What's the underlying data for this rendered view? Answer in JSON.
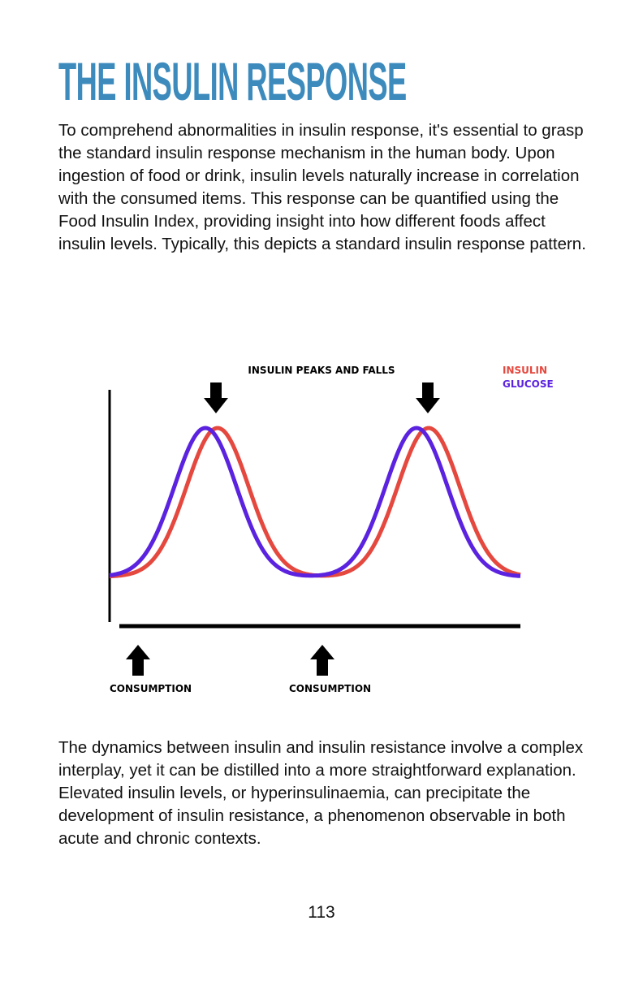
{
  "title": "THE INSULIN RESPONSE",
  "paragraphs": [
    "To comprehend abnormalities in insulin response, it's essential to grasp the standard insulin response mechanism in the human body. Upon ingestion of food or drink, insulin levels naturally increase in correlation with the consumed items. This response can be quantified using the Food Insulin Index, providing insight into how different foods affect insulin levels. Typically, this depicts a standard insulin response pattern.",
    "The dynamics between insulin and insulin resistance involve a complex interplay, yet it can be distilled into a more straightforward explanation. Elevated insulin levels, or hyperinsulinaemia, can precipitate the development of insulin resistance, a phenomenon observable in both acute and chronic contexts."
  ],
  "diagram": {
    "heading": "INSULIN PEAKS AND FALLS",
    "legend": [
      {
        "label": "INSULIN",
        "color": "#e5483e"
      },
      {
        "label": "GLUCOSE",
        "color": "#5b22e0"
      }
    ],
    "consumption_labels": [
      "CONSUMPTION",
      "CONSUMPTION"
    ]
  },
  "page_number": "113"
}
